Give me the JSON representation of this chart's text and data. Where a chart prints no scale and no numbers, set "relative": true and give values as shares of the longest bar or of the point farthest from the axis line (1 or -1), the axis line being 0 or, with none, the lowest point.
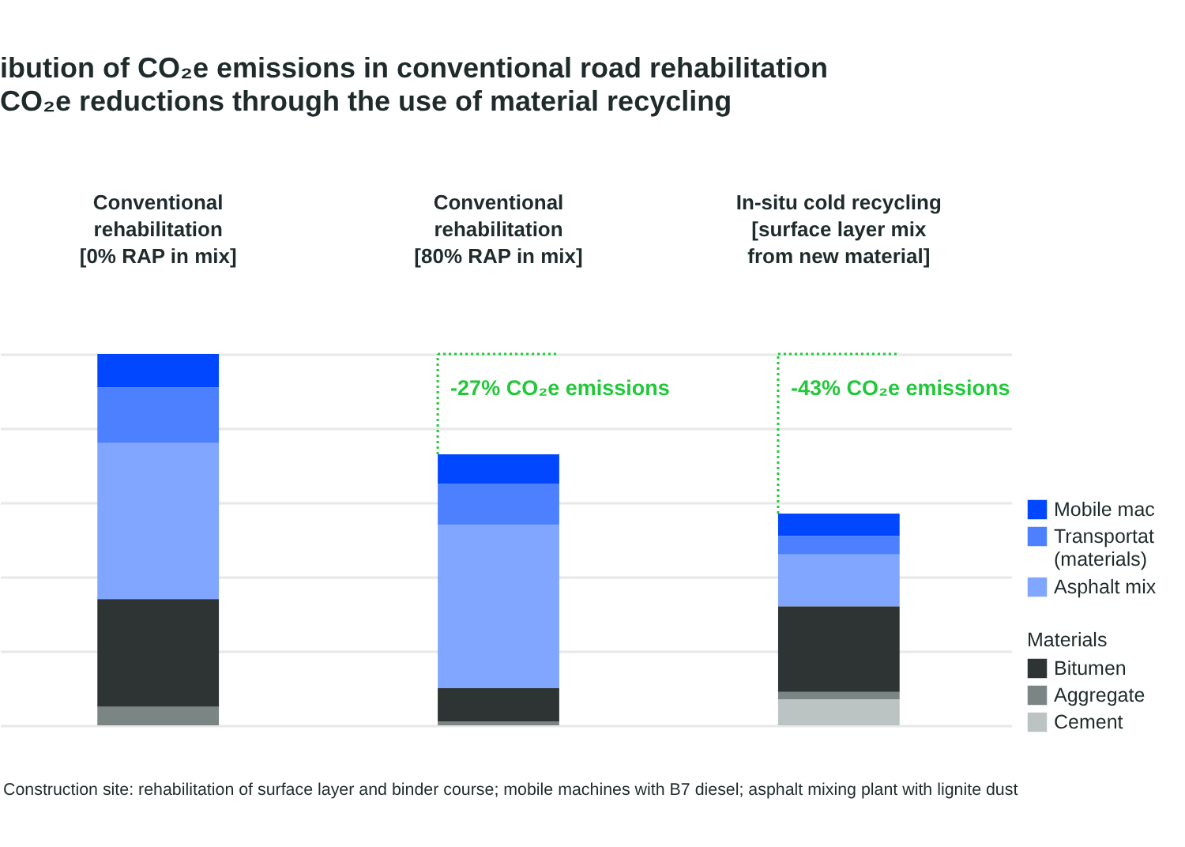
{
  "chart_data": {
    "type": "bar",
    "title": "ibution of CO₂e emissions in conventional road rehabilitation",
    "subtitle": "CO₂e reductions through the use of material recycling",
    "categories": [
      "Conventional rehabilitation [0% RAP in mix]",
      "Conventional rehabilitation [80% RAP in mix]",
      "In-situ cold recycling [surface layer mix from new material]"
    ],
    "stacked": true,
    "relative": true,
    "grid": "y",
    "legend": "right",
    "legend_title": "Materials",
    "series": [
      {
        "name": "Cement",
        "color": "#bcc4c3",
        "values": [
          null,
          null,
          0.07
        ]
      },
      {
        "name": "Aggregate",
        "color": "#7a8584",
        "values": [
          0.05,
          0.01,
          0.02
        ]
      },
      {
        "name": "Bitumen",
        "color": "#2d3433",
        "values": [
          0.29,
          0.09,
          0.23
        ]
      },
      {
        "name": "Asphalt mix",
        "color": "#80a6ff",
        "values": [
          0.42,
          0.44,
          0.14
        ]
      },
      {
        "name": "Transportat (materials)",
        "color": "#4d80ff",
        "values": [
          0.15,
          0.11,
          0.05
        ]
      },
      {
        "name": "Mobile mac",
        "color": "#0047ff",
        "values": [
          0.09,
          0.08,
          0.06
        ]
      }
    ],
    "annotations": [
      "-27% CO₂e emissions",
      "-43% CO₂e emissions",
      "Construction site: rehabilitation of surface layer and binder course; mobile machines with B7 diesel; asphalt mixing plant with lignite dust"
    ]
  }
}
